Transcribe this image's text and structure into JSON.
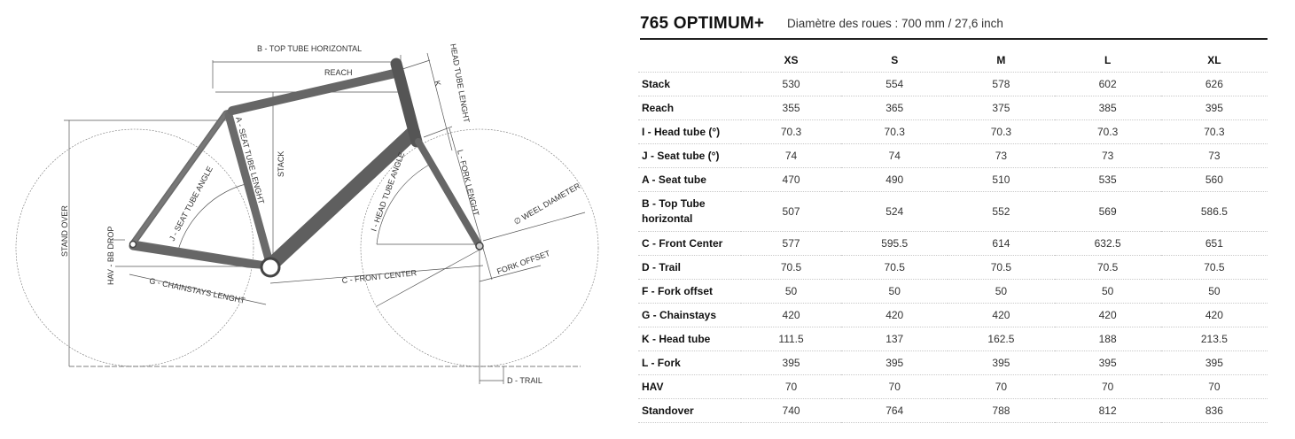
{
  "header": {
    "model": "765 OPTIMUM+",
    "wheel_info": "Diamètre des roues : 700 mm / 27,6 inch"
  },
  "diagram": {
    "labels": {
      "top_tube": "B - TOP TUBE HORIZONTAL",
      "reach": "REACH",
      "head_tube": "HEAD TUBE LENGHT",
      "k": "K",
      "seat_tube": "A - SEAT TUBE LENGHT",
      "stack": "STACK",
      "fork_length": "L - FORK LENGHT",
      "seat_angle": "J - SEAT TUBE ANGLE",
      "head_angle": "I - HEAD TUBE ANGLE",
      "wheel_diameter": "∅ WEEL DIAMETER",
      "stand_over": "STAND OVER",
      "bb_drop": "HAV - BB DROP",
      "chainstays": "G - CHAINSTAYS LENGHT",
      "front_center": "C - FRONT CENTER",
      "fork_offset": "FORK OFFSET",
      "trail": "D - TRAIL"
    }
  },
  "table": {
    "columns": [
      "XS",
      "S",
      "M",
      "L",
      "XL"
    ],
    "rows": [
      {
        "label": "Stack",
        "values": [
          "530",
          "554",
          "578",
          "602",
          "626"
        ]
      },
      {
        "label": "Reach",
        "values": [
          "355",
          "365",
          "375",
          "385",
          "395"
        ]
      },
      {
        "label": "I - Head tube (°)",
        "values": [
          "70.3",
          "70.3",
          "70.3",
          "70.3",
          "70.3"
        ]
      },
      {
        "label": "J - Seat tube (°)",
        "values": [
          "74",
          "74",
          "73",
          "73",
          "73"
        ]
      },
      {
        "label": "A - Seat tube",
        "values": [
          "470",
          "490",
          "510",
          "535",
          "560"
        ]
      },
      {
        "label": "B - Top Tube horizontal",
        "values": [
          "507",
          "524",
          "552",
          "569",
          "586.5"
        ]
      },
      {
        "label": "C - Front Center",
        "values": [
          "577",
          "595.5",
          "614",
          "632.5",
          "651"
        ]
      },
      {
        "label": "D - Trail",
        "values": [
          "70.5",
          "70.5",
          "70.5",
          "70.5",
          "70.5"
        ]
      },
      {
        "label": "F - Fork offset",
        "values": [
          "50",
          "50",
          "50",
          "50",
          "50"
        ]
      },
      {
        "label": "G - Chainstays",
        "values": [
          "420",
          "420",
          "420",
          "420",
          "420"
        ]
      },
      {
        "label": "K - Head tube",
        "values": [
          "111.5",
          "137",
          "162.5",
          "188",
          "213.5"
        ]
      },
      {
        "label": "L - Fork",
        "values": [
          "395",
          "395",
          "395",
          "395",
          "395"
        ]
      },
      {
        "label": "HAV",
        "values": [
          "70",
          "70",
          "70",
          "70",
          "70"
        ]
      },
      {
        "label": "Standover",
        "values": [
          "740",
          "764",
          "788",
          "812",
          "836"
        ]
      }
    ]
  }
}
